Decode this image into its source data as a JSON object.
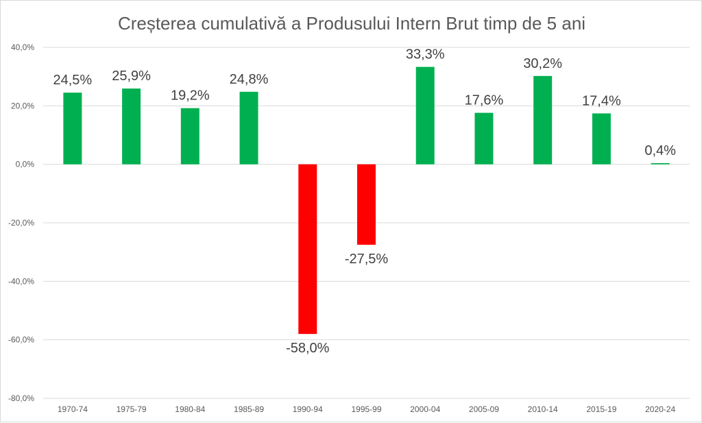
{
  "chart_data": {
    "type": "bar",
    "title": "Creșterea cumulativă a Produsului Intern Brut timp de 5 ani",
    "xlabel": "",
    "ylabel": "",
    "categories": [
      "1970-74",
      "1975-79",
      "1980-84",
      "1985-89",
      "1990-94",
      "1995-99",
      "2000-04",
      "2005-09",
      "2010-14",
      "2015-19",
      "2020-24"
    ],
    "values": [
      24.5,
      25.9,
      19.2,
      24.8,
      -58.0,
      -27.5,
      33.3,
      17.6,
      30.2,
      17.4,
      0.4
    ],
    "data_labels": [
      "24,5%",
      "25,9%",
      "19,2%",
      "24,8%",
      "-58,0%",
      "-27,5%",
      "33,3%",
      "17,6%",
      "30,2%",
      "17,4%",
      "0,4%"
    ],
    "ylim": [
      -80,
      40
    ],
    "yticks": [
      40,
      20,
      0,
      -20,
      -40,
      -60,
      -80
    ],
    "ytick_labels": [
      "40,0%",
      "20,0%",
      "0,0%",
      "-20,0%",
      "-40,0%",
      "-60,0%",
      "-80,0%"
    ],
    "grid": true,
    "legend": "none",
    "colors": {
      "positive": "#00b050",
      "negative": "#ff0000",
      "gridline": "#d9d9d9",
      "text": "#595959"
    }
  }
}
